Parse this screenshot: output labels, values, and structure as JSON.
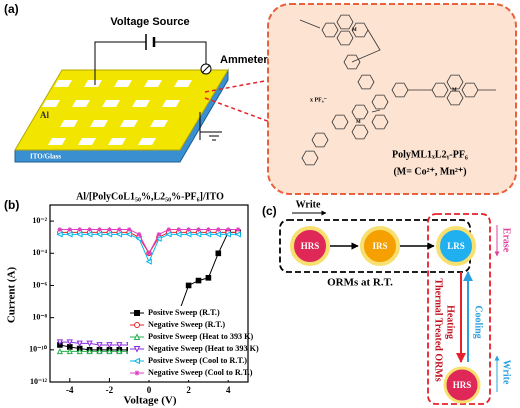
{
  "panel_a": {
    "label": "(a)",
    "voltage_source": "Voltage Source",
    "ammeter": "Ammeter",
    "electrode": "Al",
    "substrate": "ITO/Glass",
    "counter_ion": "x PF₆⁻",
    "polymer": "PolyML1ₓL2ᵧ-PF₆",
    "metals": "(M= Co²⁺, Mn²⁺)"
  },
  "chart_data": {
    "type": "line",
    "label": "(b)",
    "title": "Al/[PolyCoL1₅₀%,L2₅₀%-PF₆]/ITO",
    "xlabel": "Voltage (V)",
    "ylabel": "Current (A)",
    "ylog": true,
    "legend": "lower right",
    "xlim": [
      -5,
      5
    ],
    "xticks": [
      -4,
      -2,
      0,
      2,
      4
    ],
    "ylim": [
      1e-12,
      0.1
    ],
    "yticks": [
      {
        "value": 1e-12,
        "label": "10⁻¹²"
      },
      {
        "value": 1e-10,
        "label": "10⁻¹⁰"
      },
      {
        "value": 1e-08,
        "label": "10⁻⁸"
      },
      {
        "value": 1e-06,
        "label": "10⁻⁶"
      },
      {
        "value": 0.0001,
        "label": "10⁻⁴"
      },
      {
        "value": 0.01,
        "label": "10⁻²"
      }
    ],
    "x": [
      -4.5,
      -4,
      -3.5,
      -3,
      -2.5,
      -2,
      -1.5,
      -1,
      -0.5,
      0,
      0.5,
      1,
      1.5,
      2,
      2.5,
      3,
      3.5,
      4,
      4.5
    ],
    "series": [
      {
        "name": "Positve Sweep (R.T.)",
        "color": "#000000",
        "marker": "square",
        "values": [
          2e-10,
          1.5e-10,
          1.2e-10,
          1e-10,
          1e-10,
          1e-10,
          1e-10,
          1e-10,
          1e-10,
          1e-11,
          3e-09,
          1e-08,
          2e-08,
          1e-06,
          2e-06,
          3e-06,
          0.0001,
          0.002,
          0.002
        ]
      },
      {
        "name": "Negative Sweep (R.T.)",
        "color": "#e8202a",
        "marker": "circle",
        "values": [
          0.002,
          0.002,
          0.002,
          0.002,
          0.002,
          0.002,
          0.002,
          0.002,
          0.001,
          0.0001,
          0.001,
          0.002,
          0.002,
          0.002,
          0.002,
          0.002,
          0.002,
          0.002,
          0.002
        ]
      },
      {
        "name": "Positve Sweep (Heat to 393 K)",
        "color": "#22b14c",
        "marker": "triangle",
        "values": [
          8e-11,
          8e-11,
          8e-11,
          8e-11,
          8e-11,
          8e-11,
          8e-11,
          8e-11,
          8e-11,
          1e-11,
          6e-11,
          6e-11,
          6e-11,
          6e-11,
          6e-11,
          6e-11,
          6e-11,
          6e-11,
          6e-11
        ]
      },
      {
        "name": "Negative Sweep (Heat to 393 K)",
        "color": "#8a2be2",
        "marker": "triangle-down",
        "values": [
          3e-10,
          3e-10,
          2.5e-10,
          2.5e-10,
          2e-10,
          2e-10,
          2e-10,
          2e-10,
          2e-10,
          2e-11,
          1e-10,
          1e-10,
          1e-10,
          1e-10,
          1e-10,
          1e-10,
          1e-10,
          1e-10,
          1e-10
        ]
      },
      {
        "name": "Positve Sweep (Cool to R.T.)",
        "color": "#00b7eb",
        "marker": "triangle-left",
        "values": [
          0.0015,
          0.0015,
          0.0015,
          0.0015,
          0.0015,
          0.0015,
          0.0015,
          0.0015,
          0.0008,
          3e-05,
          0.0008,
          0.0015,
          0.0015,
          0.0015,
          0.0015,
          0.0015,
          0.0015,
          0.0015,
          0.0015
        ]
      },
      {
        "name": "Negative Sweep (Cool to R.T.)",
        "color": "#e040c0",
        "marker": "star",
        "values": [
          0.003,
          0.003,
          0.003,
          0.003,
          0.003,
          0.003,
          0.003,
          0.003,
          0.0015,
          0.0001,
          0.0015,
          0.003,
          0.003,
          0.003,
          0.003,
          0.003,
          0.003,
          0.003,
          0.003
        ]
      }
    ]
  },
  "panel_c": {
    "label": "(c)",
    "write_top": "Write",
    "erase": "Erase",
    "states": [
      "HRS",
      "IRS",
      "LRS"
    ],
    "caption": "ORMs at R.T.",
    "heating": "Heating",
    "cooling": "Cooling",
    "treated": "Thermal Treated ORMs",
    "bottom_state": "HRS",
    "write_side": "Write"
  }
}
